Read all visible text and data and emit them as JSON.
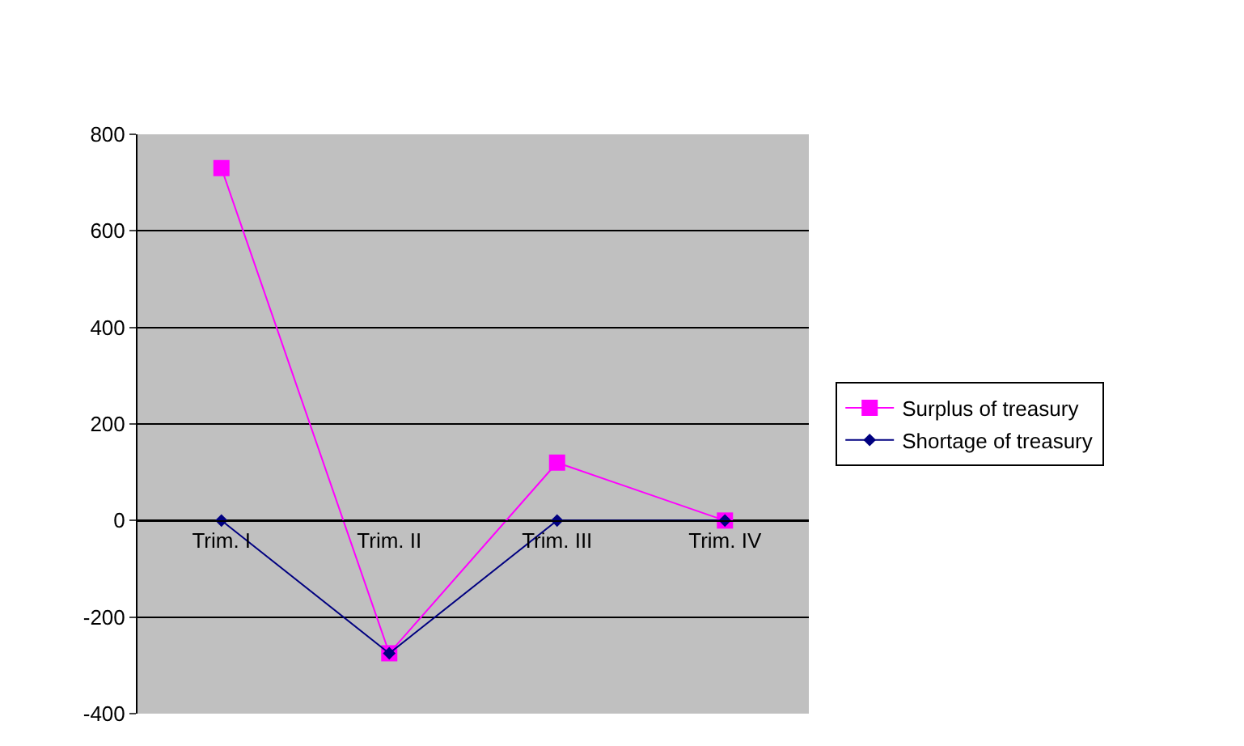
{
  "chart_data": {
    "type": "line",
    "categories": [
      "Trim. I",
      "Trim. II",
      "Trim. III",
      "Trim. IV"
    ],
    "series": [
      {
        "name": "Surplus of treasury",
        "color": "#ff00ff",
        "marker": "square",
        "values": [
          730,
          -275,
          120,
          0
        ]
      },
      {
        "name": "Shortage of treasury",
        "color": "#000080",
        "marker": "diamond",
        "values": [
          0,
          -275,
          0,
          0
        ]
      }
    ],
    "ylim": [
      -400,
      800
    ],
    "yticks": [
      -400,
      -200,
      0,
      200,
      400,
      600,
      800
    ],
    "grid": "y",
    "legend": "right",
    "line_style": "solid"
  }
}
